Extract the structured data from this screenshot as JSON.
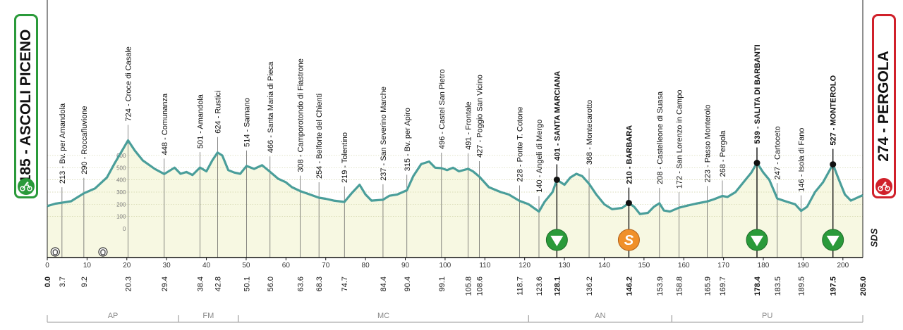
{
  "start": {
    "label": "185 - ASCOLI PICENO"
  },
  "finish": {
    "label": "274 - PERGOLA"
  },
  "brand": "SDS",
  "colors": {
    "profile": "#4a9e9a",
    "fill": "#f7f8e2",
    "start": "#2a9a3a",
    "finish": "#d0202a",
    "gpm": "#2a9a3a",
    "sprint": "#f0902a"
  },
  "chart_data": {
    "type": "area",
    "xlim": [
      0,
      205
    ],
    "x_ticks": [
      0,
      10,
      20,
      30,
      40,
      50,
      60,
      70,
      80,
      90,
      100,
      110,
      120,
      130,
      140,
      150,
      160,
      170,
      180,
      190,
      200
    ],
    "y_ticks": [
      0,
      100,
      200,
      300,
      400,
      500,
      600
    ],
    "ylim": [
      0,
      760
    ],
    "profile": [
      [
        0,
        185
      ],
      [
        2,
        205
      ],
      [
        3.7,
        213
      ],
      [
        6,
        225
      ],
      [
        9.2,
        290
      ],
      [
        12,
        330
      ],
      [
        15,
        420
      ],
      [
        17,
        540
      ],
      [
        19,
        650
      ],
      [
        20.3,
        724
      ],
      [
        22,
        640
      ],
      [
        24,
        560
      ],
      [
        27,
        490
      ],
      [
        29.4,
        448
      ],
      [
        32,
        500
      ],
      [
        33.5,
        450
      ],
      [
        35,
        465
      ],
      [
        36.5,
        440
      ],
      [
        38.4,
        501
      ],
      [
        40,
        470
      ],
      [
        41.5,
        560
      ],
      [
        42.8,
        624
      ],
      [
        44,
        600
      ],
      [
        45.5,
        480
      ],
      [
        47,
        460
      ],
      [
        48.5,
        450
      ],
      [
        50.1,
        514
      ],
      [
        52,
        490
      ],
      [
        54,
        520
      ],
      [
        56,
        466
      ],
      [
        58,
        410
      ],
      [
        60,
        380
      ],
      [
        61.5,
        340
      ],
      [
        63.6,
        308
      ],
      [
        66,
        280
      ],
      [
        68.3,
        254
      ],
      [
        70,
        245
      ],
      [
        72,
        230
      ],
      [
        74.7,
        219
      ],
      [
        76.5,
        290
      ],
      [
        78.5,
        360
      ],
      [
        80,
        280
      ],
      [
        81.5,
        230
      ],
      [
        84.4,
        237
      ],
      [
        86,
        270
      ],
      [
        88,
        280
      ],
      [
        90.4,
        315
      ],
      [
        92,
        430
      ],
      [
        94,
        530
      ],
      [
        96,
        550
      ],
      [
        97.5,
        500
      ],
      [
        99.1,
        496
      ],
      [
        100.5,
        480
      ],
      [
        102,
        500
      ],
      [
        103.5,
        470
      ],
      [
        105.8,
        491
      ],
      [
        107,
        470
      ],
      [
        108.6,
        427
      ],
      [
        111,
        340
      ],
      [
        114,
        300
      ],
      [
        116,
        280
      ],
      [
        118.7,
        228
      ],
      [
        121,
        200
      ],
      [
        123.6,
        140
      ],
      [
        125,
        220
      ],
      [
        127,
        300
      ],
      [
        128.1,
        401
      ],
      [
        130,
        360
      ],
      [
        131.5,
        420
      ],
      [
        133,
        450
      ],
      [
        134.5,
        430
      ],
      [
        136.2,
        368
      ],
      [
        138,
        280
      ],
      [
        140,
        200
      ],
      [
        142,
        160
      ],
      [
        144.5,
        170
      ],
      [
        146.2,
        210
      ],
      [
        147.5,
        180
      ],
      [
        149,
        120
      ],
      [
        151,
        130
      ],
      [
        152.5,
        180
      ],
      [
        153.9,
        208
      ],
      [
        155,
        150
      ],
      [
        156.5,
        140
      ],
      [
        158.8,
        172
      ],
      [
        161,
        190
      ],
      [
        163,
        205
      ],
      [
        165.9,
        223
      ],
      [
        167.5,
        240
      ],
      [
        169.7,
        268
      ],
      [
        171,
        260
      ],
      [
        173,
        300
      ],
      [
        175,
        380
      ],
      [
        177,
        460
      ],
      [
        178.4,
        539
      ],
      [
        180,
        460
      ],
      [
        181.5,
        400
      ],
      [
        183.5,
        247
      ],
      [
        186,
        220
      ],
      [
        188,
        200
      ],
      [
        189.5,
        146
      ],
      [
        191,
        180
      ],
      [
        193,
        300
      ],
      [
        195,
        380
      ],
      [
        197.5,
        527
      ],
      [
        199,
        400
      ],
      [
        200.5,
        280
      ],
      [
        202,
        230
      ],
      [
        204,
        260
      ],
      [
        205,
        274
      ]
    ],
    "points": [
      {
        "km": "3.7",
        "alt": 213,
        "label": "213 - Bv. per Amandola",
        "bold": false
      },
      {
        "km": "9.2",
        "alt": 290,
        "label": "290 - Roccafluvione",
        "bold": false
      },
      {
        "km": "20.3",
        "alt": 724,
        "label": "724 - Croce di Casale",
        "bold": false
      },
      {
        "km": "29.4",
        "alt": 448,
        "label": "448 - Comunanza",
        "bold": false
      },
      {
        "km": "38.4",
        "alt": 501,
        "label": "501 - Amandola",
        "bold": false
      },
      {
        "km": "42.8",
        "alt": 624,
        "label": "624 - Rustici",
        "bold": false
      },
      {
        "km": "50.1",
        "alt": 514,
        "label": "514 - Sarnano",
        "bold": false
      },
      {
        "km": "56.0",
        "alt": 466,
        "label": "466 - Santa Maria di Pieca",
        "bold": false
      },
      {
        "km": "63.6",
        "alt": 308,
        "label": "308 - Camporotondo di Fiastrone",
        "bold": false
      },
      {
        "km": "68.3",
        "alt": 254,
        "label": "254 - Belforte del Chienti",
        "bold": false
      },
      {
        "km": "74.7",
        "alt": 219,
        "label": "219 - Tolentino",
        "bold": false
      },
      {
        "km": "84.4",
        "alt": 237,
        "label": "237 - San Severino Marche",
        "bold": false
      },
      {
        "km": "90.4",
        "alt": 315,
        "label": "315 - Bv. per Apiro",
        "bold": false
      },
      {
        "km": "99.1",
        "alt": 496,
        "label": "496 - Castel San Pietro",
        "bold": false
      },
      {
        "km": "105.8",
        "alt": 491,
        "label": "491 - Frontale",
        "bold": false
      },
      {
        "km": "108.6",
        "alt": 427,
        "label": "427 - Poggio San Vicino",
        "bold": false
      },
      {
        "km": "118.7",
        "alt": 228,
        "label": "228 - Ponte T. Cotone",
        "bold": false
      },
      {
        "km": "123.6",
        "alt": 140,
        "label": "140 - Angeli di Mergo",
        "bold": false
      },
      {
        "km": "128.1",
        "alt": 401,
        "label": "401 - SANTA MARCIANA",
        "bold": true,
        "marker": "gpm"
      },
      {
        "km": "136.2",
        "alt": 368,
        "label": "368 - Montecarotto",
        "bold": false
      },
      {
        "km": "146.2",
        "alt": 210,
        "label": "210 - BARBARA",
        "bold": true,
        "marker": "sprint"
      },
      {
        "km": "153.9",
        "alt": 208,
        "label": "208 - Castelleone di Suasa",
        "bold": false
      },
      {
        "km": "158.8",
        "alt": 172,
        "label": "172 - San Lorenzo in Campo",
        "bold": false
      },
      {
        "km": "165.9",
        "alt": 223,
        "label": "223 - Passo Monterolo",
        "bold": false
      },
      {
        "km": "169.7",
        "alt": 268,
        "label": "268 - Pergola",
        "bold": false
      },
      {
        "km": "178.4",
        "alt": 539,
        "label": "539 - SALITA DI BARBANTI",
        "bold": true,
        "marker": "gpm"
      },
      {
        "km": "183.5",
        "alt": 247,
        "label": "247 - Cartoceto",
        "bold": false
      },
      {
        "km": "189.5",
        "alt": 146,
        "label": "146 - Isola di Fano",
        "bold": false
      },
      {
        "km": "197.5",
        "alt": 527,
        "label": "527 - MONTEROLO",
        "bold": true,
        "marker": "gpm"
      }
    ],
    "km_endpoints": [
      {
        "km": "0.0",
        "alt": 185
      },
      {
        "km": "205.0",
        "alt": 274
      }
    ],
    "tunnels": [
      2,
      14
    ],
    "sprint_letter": "S",
    "provinces": [
      {
        "name": "AP",
        "from": 0,
        "to": 33
      },
      {
        "name": "FM",
        "from": 33,
        "to": 48
      },
      {
        "name": "MC",
        "from": 48,
        "to": 121
      },
      {
        "name": "AN",
        "from": 121,
        "to": 157
      },
      {
        "name": "PU",
        "from": 157,
        "to": 205
      }
    ]
  }
}
